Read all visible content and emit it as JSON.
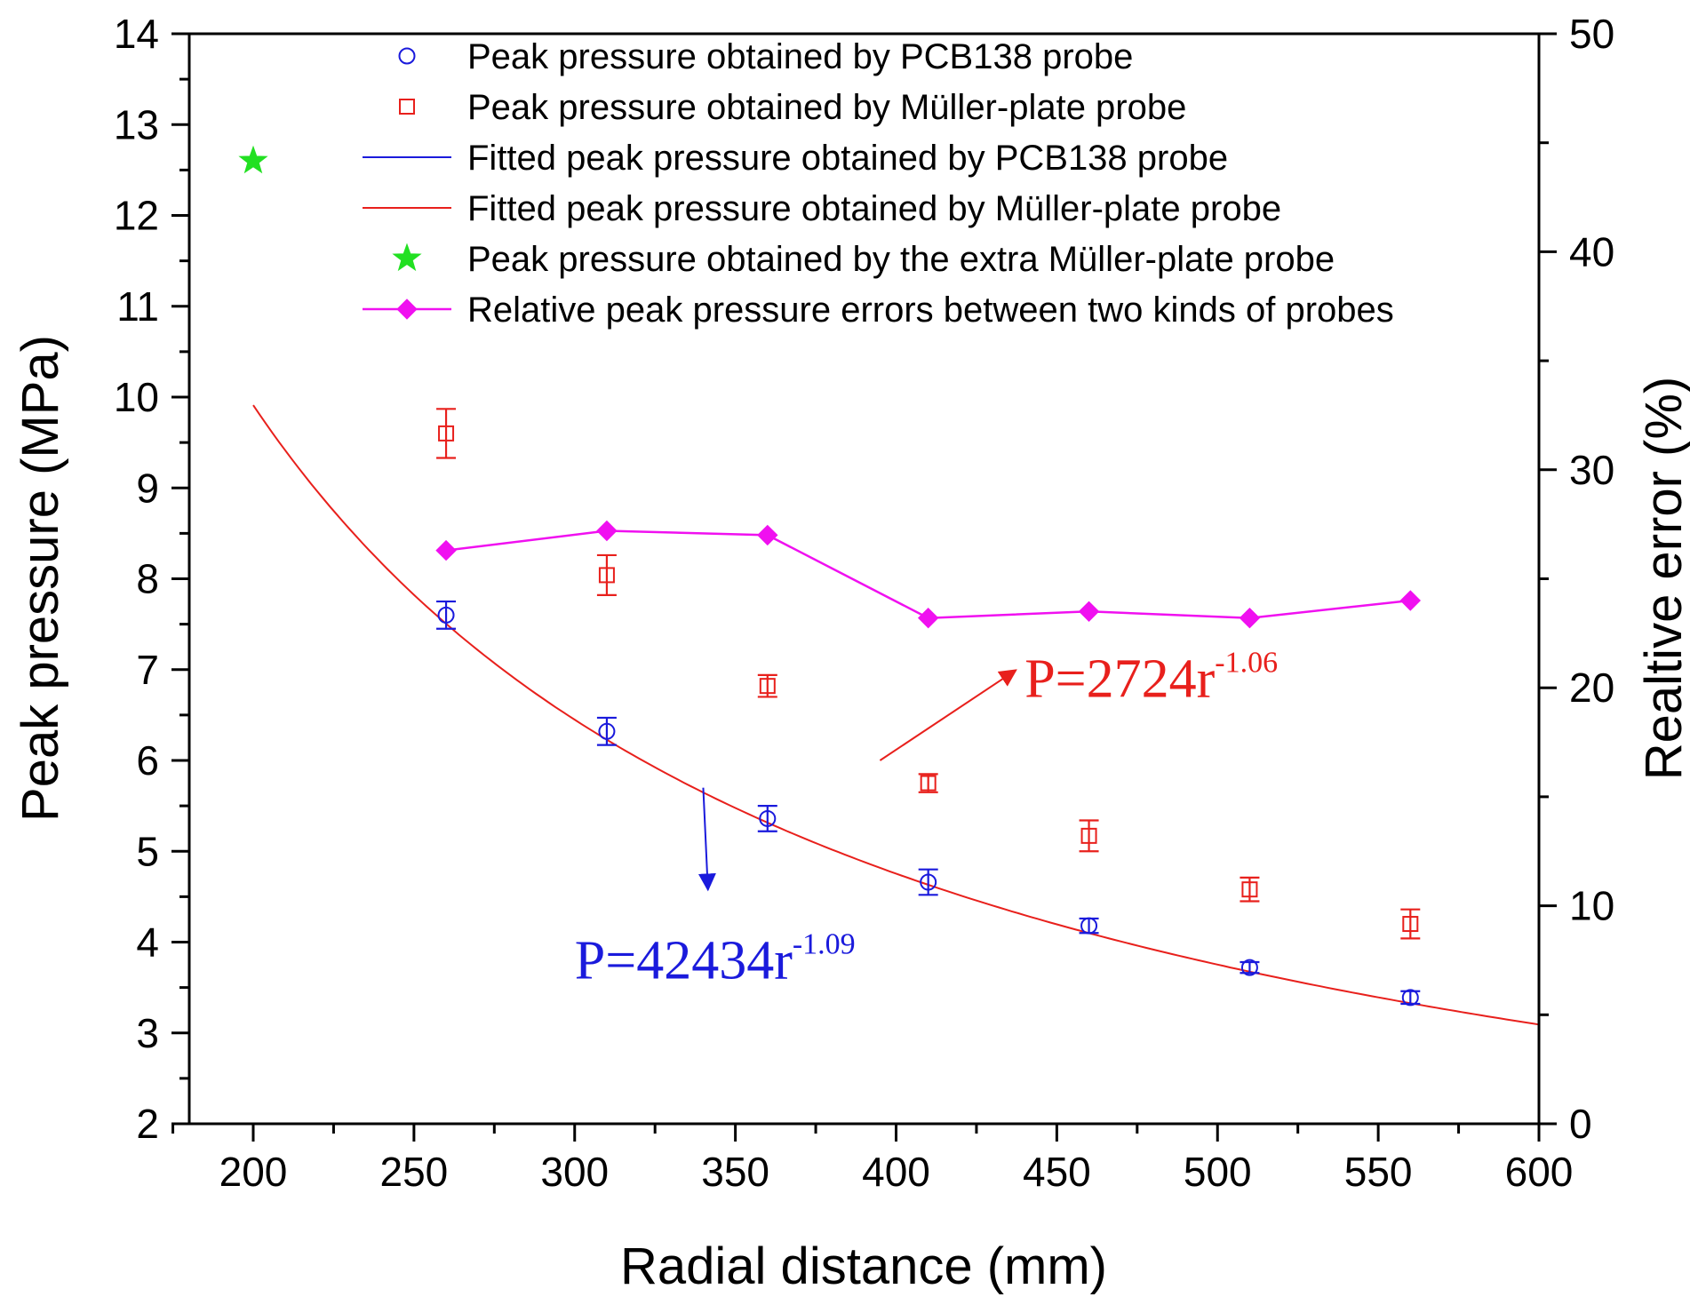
{
  "chart_data": {
    "type": "scatter",
    "x_axis": {
      "label": "Radial distance (mm)",
      "lim": [
        175,
        600
      ],
      "major_ticks": [
        200,
        250,
        300,
        350,
        400,
        450,
        500,
        550,
        600
      ],
      "minor_ticks": [
        175,
        225,
        275,
        325,
        375,
        425,
        475,
        525,
        575
      ]
    },
    "y_left_axis": {
      "label": "Peak pressure (MPa)",
      "lim": [
        2,
        14
      ],
      "major_ticks": [
        2,
        3,
        4,
        5,
        6,
        7,
        8,
        9,
        10,
        11,
        12,
        13,
        14
      ],
      "minor_ticks": [
        2.5,
        3.5,
        4.5,
        5.5,
        6.5,
        7.5,
        8.5,
        9.5,
        10.5,
        11.5,
        12.5,
        13.5
      ]
    },
    "y_right_axis": {
      "label": "Realtive error (%)",
      "lim": [
        0,
        50
      ],
      "major_ticks": [
        0,
        10,
        20,
        30,
        40,
        50
      ],
      "minor_ticks": [
        5,
        15,
        25,
        35,
        45
      ]
    },
    "series": [
      {
        "name": "Peak pressure obtained by PCB138 probe",
        "kind": "scatter",
        "marker": "circle",
        "color": "#1a1adc",
        "axis": "left",
        "x": [
          260,
          310,
          360,
          410,
          460,
          510,
          560
        ],
        "y": [
          7.6,
          6.32,
          5.36,
          4.66,
          4.18,
          3.72,
          3.39
        ],
        "err": [
          0.15,
          0.15,
          0.14,
          0.14,
          0.08,
          0.06,
          0.07
        ]
      },
      {
        "name": "Peak pressure obtained by Müller-plate probe",
        "kind": "scatter",
        "marker": "square",
        "color": "#e8201c",
        "axis": "left",
        "x": [
          260,
          310,
          360,
          410,
          460,
          510,
          560
        ],
        "y": [
          9.6,
          8.04,
          6.82,
          5.75,
          5.17,
          4.58,
          4.2
        ],
        "err": [
          0.27,
          0.22,
          0.12,
          0.1,
          0.17,
          0.13,
          0.16
        ]
      },
      {
        "name": "Fitted peak pressure obtained by PCB138 probe",
        "kind": "fit",
        "color": "#1a1adc",
        "axis": "left",
        "coef": 42434,
        "exponent": -1.09,
        "x_range": [
          200,
          600
        ]
      },
      {
        "name": "Fitted peak pressure obtained by Müller-plate probe",
        "kind": "fit",
        "color": "#e8201c",
        "axis": "left",
        "coef": 2724,
        "exponent": -1.06,
        "x_range": [
          200,
          600
        ]
      },
      {
        "name": "Peak pressure obtained by the extra Müller-plate probe",
        "kind": "scatter",
        "marker": "star",
        "color": "#22e022",
        "axis": "left",
        "x": [
          200
        ],
        "y": [
          12.6
        ]
      },
      {
        "name": "Relative peak pressure errors between two kinds of probes",
        "kind": "line",
        "marker": "diamond",
        "color": "#f010f0",
        "axis": "right",
        "x": [
          260,
          310,
          360,
          410,
          460,
          510,
          560
        ],
        "y": [
          26.3,
          27.2,
          27.0,
          23.2,
          23.5,
          23.2,
          24.0
        ]
      }
    ],
    "annotations": [
      {
        "text_main": "P=2724r",
        "text_sup": "-1.06",
        "color": "#e8201c",
        "anchor_data": [
          395,
          6.0
        ],
        "text_data": [
          440,
          6.7
        ]
      },
      {
        "text_main": "P=42434r",
        "text_sup": "-1.09",
        "color": "#1a1adc",
        "anchor_data": [
          340,
          5.7
        ],
        "text_data": [
          300,
          3.6
        ]
      }
    ]
  }
}
